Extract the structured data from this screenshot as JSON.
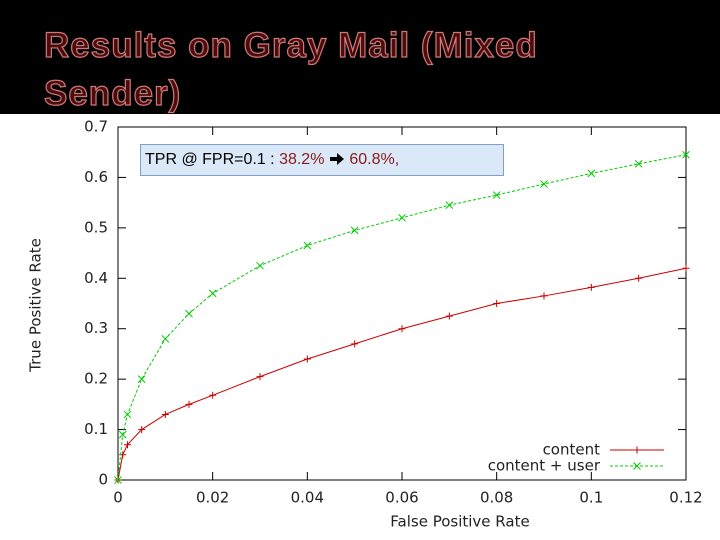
{
  "chart_data": {
    "type": "line",
    "title": "Results on Gray Mail (Mixed Sender)",
    "x_label": "False Positive Rate",
    "y_label": "True Positive Rate",
    "annotation": [
      "TPR @ FPR=0.1 :",
      "38.2%",
      "60.8%,"
    ],
    "x": [
      0,
      0.001,
      0.002,
      0.005,
      0.01,
      0.015,
      0.02,
      0.03,
      0.04,
      0.05,
      0.06,
      0.07,
      0.08,
      0.09,
      0.1,
      0.11,
      0.12
    ],
    "series": [
      {
        "name": "content",
        "color": "#cc0000",
        "marker": "plus",
        "dash": false,
        "values": [
          0,
          0.05,
          0.07,
          0.1,
          0.13,
          0.15,
          0.168,
          0.205,
          0.24,
          0.27,
          0.3,
          0.325,
          0.35,
          0.365,
          0.382,
          0.4,
          0.42
        ]
      },
      {
        "name": "content + user",
        "color": "#00cc00",
        "marker": "cross",
        "dash": true,
        "values": [
          0,
          0.09,
          0.13,
          0.2,
          0.28,
          0.33,
          0.37,
          0.425,
          0.465,
          0.495,
          0.52,
          0.545,
          0.565,
          0.587,
          0.608,
          0.627,
          0.645
        ]
      }
    ],
    "xlim": [
      0,
      0.12
    ],
    "xticks": [
      0,
      0.02,
      0.04,
      0.06,
      0.08,
      0.1,
      0.12
    ],
    "ylim": [
      0,
      0.7
    ],
    "yticks": [
      0,
      0.1,
      0.2,
      0.3,
      0.4,
      0.5,
      0.6,
      0.7
    ],
    "grid": false,
    "legend": "bottom-right"
  }
}
